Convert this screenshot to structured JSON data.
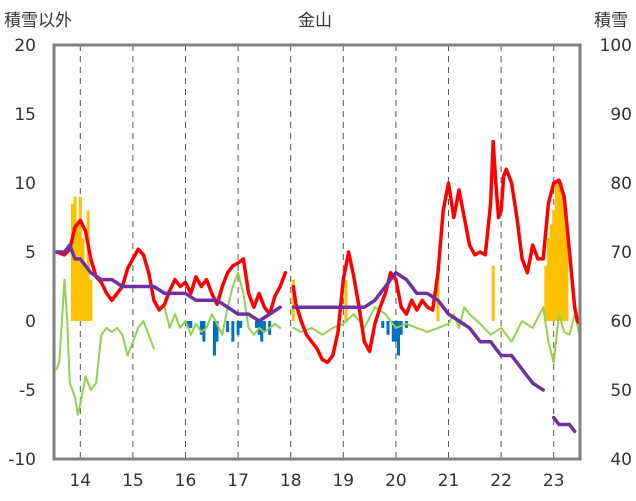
{
  "chart_data": {
    "type": "line",
    "title": "金山",
    "ylabel_left": "積雪以外",
    "ylabel_right": "積雪",
    "x_ticks": [
      "14",
      "15",
      "16",
      "17",
      "18",
      "19",
      "20",
      "21",
      "22",
      "23"
    ],
    "x_range": [
      13.5,
      23.5
    ],
    "y_left": {
      "range": [
        -10,
        20
      ],
      "ticks": [
        -10,
        -5,
        0,
        5,
        10,
        15,
        20
      ]
    },
    "y_right": {
      "range": [
        40,
        100
      ],
      "ticks": [
        40,
        50,
        60,
        70,
        80,
        90,
        100
      ]
    },
    "grid": "vertical-dashed",
    "series": [
      {
        "axis": "left",
        "kind": "line",
        "color": "#ff0000",
        "points": [
          [
            13.55,
            5
          ],
          [
            13.7,
            4.8
          ],
          [
            13.8,
            5.2
          ],
          [
            13.9,
            6.8
          ],
          [
            14.0,
            7.3
          ],
          [
            14.1,
            6.5
          ],
          [
            14.2,
            4.5
          ],
          [
            14.3,
            3.2
          ],
          [
            14.4,
            2.8
          ],
          [
            14.5,
            2.0
          ],
          [
            14.6,
            1.5
          ],
          [
            14.7,
            2.0
          ],
          [
            14.8,
            2.5
          ],
          [
            14.9,
            3.8
          ],
          [
            15.0,
            4.5
          ],
          [
            15.1,
            5.2
          ],
          [
            15.2,
            4.8
          ],
          [
            15.3,
            3.5
          ],
          [
            15.4,
            1.5
          ],
          [
            15.5,
            0.8
          ],
          [
            15.6,
            1.2
          ],
          [
            15.7,
            2.2
          ],
          [
            15.8,
            3.0
          ],
          [
            15.9,
            2.5
          ],
          [
            16.0,
            2.8
          ],
          [
            16.1,
            2.0
          ],
          [
            16.2,
            3.2
          ],
          [
            16.3,
            2.5
          ],
          [
            16.4,
            3.0
          ],
          [
            16.5,
            2.0
          ],
          [
            16.6,
            1.2
          ],
          [
            16.7,
            2.5
          ],
          [
            16.8,
            3.5
          ],
          [
            16.9,
            4.0
          ],
          [
            17.0,
            4.2
          ],
          [
            17.1,
            4.5
          ],
          [
            17.2,
            2.0
          ],
          [
            17.3,
            1.0
          ],
          [
            17.4,
            2.0
          ],
          [
            17.5,
            1.0
          ],
          [
            17.6,
            0.5
          ],
          [
            17.7,
            1.8
          ],
          [
            17.8,
            2.5
          ],
          [
            17.9,
            3.5
          ],
          [
            18.0,
            null
          ],
          [
            18.05,
            2.5
          ],
          [
            18.1,
            1.2
          ],
          [
            18.2,
            0.0
          ],
          [
            18.3,
            -1.0
          ],
          [
            18.4,
            -1.5
          ],
          [
            18.5,
            -2.0
          ],
          [
            18.6,
            -2.8
          ],
          [
            18.7,
            -3.0
          ],
          [
            18.8,
            -2.5
          ],
          [
            18.9,
            -0.8
          ],
          [
            19.0,
            3.0
          ],
          [
            19.1,
            5.0
          ],
          [
            19.2,
            3.2
          ],
          [
            19.3,
            1.0
          ],
          [
            19.4,
            -1.5
          ],
          [
            19.5,
            -2.2
          ],
          [
            19.6,
            -0.2
          ],
          [
            19.7,
            1.0
          ],
          [
            19.8,
            2.0
          ],
          [
            19.9,
            3.5
          ],
          [
            20.0,
            3.0
          ],
          [
            20.1,
            1.0
          ],
          [
            20.2,
            0.5
          ],
          [
            20.3,
            1.5
          ],
          [
            20.4,
            0.8
          ],
          [
            20.5,
            1.5
          ],
          [
            20.6,
            1.0
          ],
          [
            20.7,
            0.8
          ],
          [
            20.8,
            3.5
          ],
          [
            20.9,
            8.0
          ],
          [
            21.0,
            10.0
          ],
          [
            21.1,
            7.5
          ],
          [
            21.2,
            9.5
          ],
          [
            21.3,
            7.5
          ],
          [
            21.4,
            5.5
          ],
          [
            21.5,
            4.8
          ],
          [
            21.6,
            5.0
          ],
          [
            21.7,
            4.8
          ],
          [
            21.8,
            8.5
          ],
          [
            21.85,
            13.0
          ],
          [
            21.9,
            10.0
          ],
          [
            21.95,
            7.5
          ],
          [
            22.0,
            8.0
          ],
          [
            22.05,
            10.5
          ],
          [
            22.1,
            11.0
          ],
          [
            22.2,
            10.0
          ],
          [
            22.3,
            7.5
          ],
          [
            22.4,
            4.5
          ],
          [
            22.5,
            3.5
          ],
          [
            22.6,
            5.5
          ],
          [
            22.7,
            4.5
          ],
          [
            22.8,
            4.5
          ],
          [
            22.9,
            8.5
          ],
          [
            23.0,
            10.0
          ],
          [
            23.1,
            10.2
          ],
          [
            23.2,
            9.0
          ],
          [
            23.3,
            5.0
          ],
          [
            23.4,
            1.0
          ],
          [
            23.45,
            0.0
          ],
          [
            23.5,
            -0.2
          ]
        ]
      },
      {
        "axis": "left",
        "kind": "line",
        "color": "#92d050",
        "points": [
          [
            13.55,
            -3.5
          ],
          [
            13.6,
            -3.0
          ],
          [
            13.7,
            3.0
          ],
          [
            13.75,
            0.0
          ],
          [
            13.8,
            -4.5
          ],
          [
            13.9,
            -5.5
          ],
          [
            13.95,
            -6.8
          ],
          [
            14.0,
            -6.0
          ],
          [
            14.1,
            -4.0
          ],
          [
            14.2,
            -5.0
          ],
          [
            14.3,
            -4.5
          ],
          [
            14.4,
            -1.0
          ],
          [
            14.5,
            -0.5
          ],
          [
            14.6,
            -0.8
          ],
          [
            14.7,
            -0.5
          ],
          [
            14.8,
            -1.0
          ],
          [
            14.9,
            -2.5
          ],
          [
            15.0,
            -1.5
          ],
          [
            15.1,
            -0.5
          ],
          [
            15.2,
            0.0
          ],
          [
            15.3,
            -1.0
          ],
          [
            15.4,
            -2.0
          ],
          [
            15.5,
            null
          ],
          [
            15.6,
            1.0
          ],
          [
            15.7,
            -0.5
          ],
          [
            15.8,
            0.5
          ],
          [
            15.9,
            -0.5
          ],
          [
            16.0,
            0.0
          ],
          [
            16.1,
            -1.0
          ],
          [
            16.2,
            -0.2
          ],
          [
            16.3,
            -0.8
          ],
          [
            16.4,
            -0.5
          ],
          [
            16.5,
            0.5
          ],
          [
            16.6,
            -0.2
          ],
          [
            16.7,
            -1.0
          ],
          [
            16.8,
            1.0
          ],
          [
            16.9,
            2.5
          ],
          [
            17.0,
            3.5
          ],
          [
            17.1,
            2.0
          ],
          [
            17.2,
            -0.5
          ],
          [
            17.3,
            -1.0
          ],
          [
            17.4,
            -0.5
          ],
          [
            17.5,
            -0.8
          ],
          [
            17.6,
            -0.5
          ],
          [
            17.7,
            -0.2
          ],
          [
            17.8,
            -0.5
          ],
          [
            18.0,
            null
          ],
          [
            18.05,
            -0.5
          ],
          [
            18.2,
            -0.8
          ],
          [
            18.4,
            -0.5
          ],
          [
            18.6,
            -1.0
          ],
          [
            18.8,
            -0.5
          ],
          [
            19.0,
            -0.2
          ],
          [
            19.2,
            0.5
          ],
          [
            19.4,
            -0.5
          ],
          [
            19.6,
            1.0
          ],
          [
            19.8,
            0.5
          ],
          [
            20.0,
            -0.5
          ],
          [
            20.2,
            -0.2
          ],
          [
            20.4,
            -0.5
          ],
          [
            20.6,
            -0.8
          ],
          [
            20.8,
            -0.5
          ],
          [
            21.0,
            -0.2
          ],
          [
            21.1,
            0.5
          ],
          [
            21.2,
            -0.5
          ],
          [
            21.3,
            1.0
          ],
          [
            21.4,
            0.5
          ],
          [
            21.6,
            -0.2
          ],
          [
            21.8,
            -1.0
          ],
          [
            22.0,
            -0.5
          ],
          [
            22.2,
            -1.5
          ],
          [
            22.4,
            0.0
          ],
          [
            22.6,
            -0.5
          ],
          [
            22.8,
            1.0
          ],
          [
            22.9,
            -1.5
          ],
          [
            23.0,
            -3.0
          ],
          [
            23.1,
            0.5
          ],
          [
            23.2,
            -0.8
          ],
          [
            23.3,
            -1.0
          ],
          [
            23.4,
            0.5
          ],
          [
            23.5,
            -1.2
          ]
        ]
      },
      {
        "axis": "right",
        "kind": "line",
        "color": "#7030a0",
        "points": [
          [
            13.55,
            70
          ],
          [
            13.7,
            70
          ],
          [
            13.8,
            71
          ],
          [
            13.9,
            69
          ],
          [
            14.0,
            69
          ],
          [
            14.1,
            68
          ],
          [
            14.2,
            67
          ],
          [
            14.4,
            66
          ],
          [
            14.6,
            66
          ],
          [
            14.8,
            65
          ],
          [
            15.0,
            65
          ],
          [
            15.2,
            65
          ],
          [
            15.4,
            65
          ],
          [
            15.6,
            64
          ],
          [
            15.8,
            64
          ],
          [
            16.0,
            64
          ],
          [
            16.2,
            63
          ],
          [
            16.4,
            63
          ],
          [
            16.6,
            63
          ],
          [
            16.8,
            62
          ],
          [
            17.0,
            61
          ],
          [
            17.2,
            61
          ],
          [
            17.4,
            60
          ],
          [
            17.6,
            61
          ],
          [
            17.8,
            62
          ],
          [
            18.0,
            null
          ],
          [
            18.05,
            62
          ],
          [
            18.2,
            62
          ],
          [
            18.4,
            62
          ],
          [
            18.6,
            62
          ],
          [
            18.8,
            62
          ],
          [
            19.0,
            62
          ],
          [
            19.2,
            62
          ],
          [
            19.4,
            62
          ],
          [
            19.6,
            63
          ],
          [
            19.7,
            64
          ],
          [
            19.8,
            65
          ],
          [
            19.9,
            66
          ],
          [
            20.0,
            67
          ],
          [
            20.2,
            66
          ],
          [
            20.4,
            64
          ],
          [
            20.6,
            64
          ],
          [
            20.8,
            63
          ],
          [
            21.0,
            61
          ],
          [
            21.2,
            60
          ],
          [
            21.4,
            59
          ],
          [
            21.6,
            57
          ],
          [
            21.8,
            57
          ],
          [
            22.0,
            55
          ],
          [
            22.2,
            55
          ],
          [
            22.4,
            53
          ],
          [
            22.6,
            51
          ],
          [
            22.8,
            50
          ],
          [
            22.9,
            null
          ],
          [
            23.0,
            46
          ],
          [
            23.1,
            45
          ],
          [
            23.2,
            45
          ],
          [
            23.3,
            45
          ],
          [
            23.4,
            44
          ]
        ]
      },
      {
        "axis": "left",
        "kind": "bar",
        "color": "#ffc000",
        "values": [
          [
            13.85,
            8.5
          ],
          [
            13.9,
            9
          ],
          [
            13.95,
            7
          ],
          [
            14.0,
            9
          ],
          [
            14.05,
            6
          ],
          [
            14.1,
            4
          ],
          [
            14.15,
            8
          ],
          [
            14.2,
            3
          ],
          [
            18.05,
            3
          ],
          [
            19.05,
            3
          ],
          [
            20.8,
            4
          ],
          [
            21.85,
            4
          ],
          [
            22.85,
            4
          ],
          [
            22.9,
            6
          ],
          [
            22.95,
            7
          ],
          [
            23.0,
            8
          ],
          [
            23.05,
            10
          ],
          [
            23.1,
            10
          ],
          [
            23.15,
            10
          ],
          [
            23.2,
            9
          ],
          [
            23.25,
            7
          ]
        ]
      },
      {
        "axis": "left",
        "kind": "bar",
        "color": "#0070c0",
        "values": [
          [
            16.05,
            -0.5
          ],
          [
            16.1,
            -0.5
          ],
          [
            16.3,
            -1.0
          ],
          [
            16.35,
            -1.5
          ],
          [
            16.55,
            -2.5
          ],
          [
            16.6,
            -1.5
          ],
          [
            16.8,
            -0.8
          ],
          [
            16.9,
            -1.5
          ],
          [
            17.0,
            -1.0
          ],
          [
            17.05,
            -0.5
          ],
          [
            17.35,
            -0.5
          ],
          [
            17.4,
            -1.0
          ],
          [
            17.45,
            -1.5
          ],
          [
            17.5,
            -0.8
          ],
          [
            17.6,
            -1.0
          ],
          [
            19.75,
            -0.5
          ],
          [
            19.85,
            -1.0
          ],
          [
            19.95,
            -1.5
          ],
          [
            20.0,
            -1.5
          ],
          [
            20.05,
            -2.5
          ],
          [
            20.1,
            -1.0
          ],
          [
            20.2,
            -0.5
          ]
        ]
      }
    ]
  }
}
